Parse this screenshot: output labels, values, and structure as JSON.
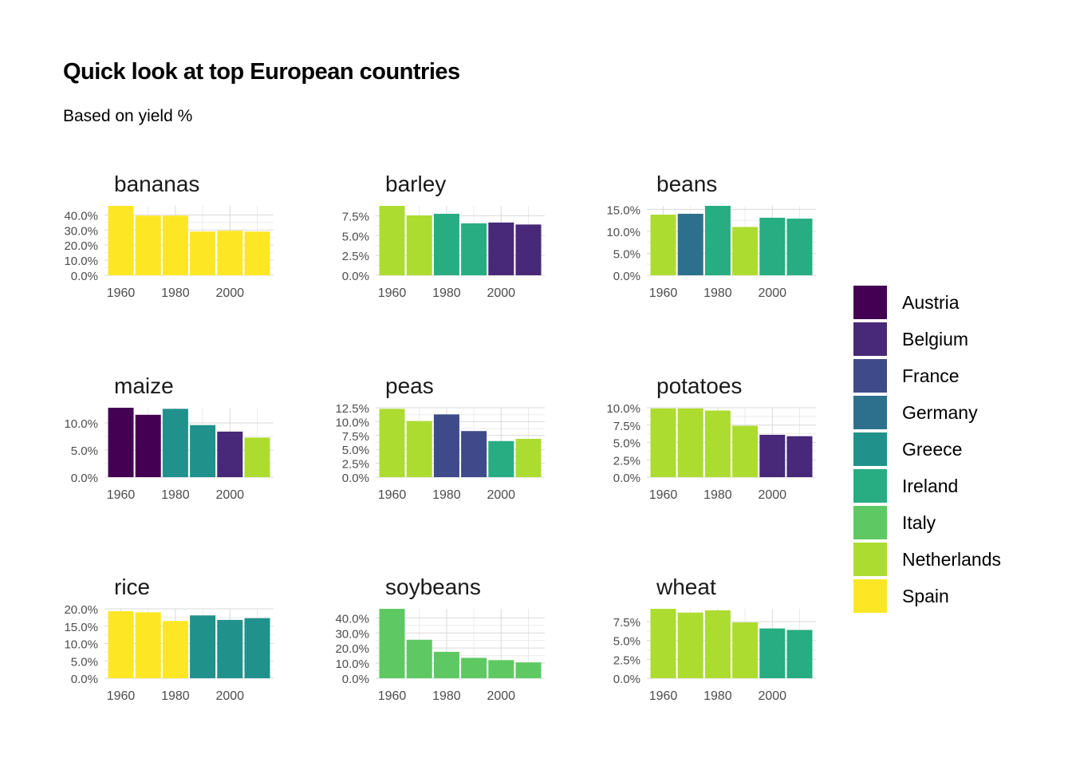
{
  "title": "Quick look at top European countries",
  "subtitle": "Based on yield %",
  "colors": {
    "Austria": "#440154",
    "Belgium": "#482878",
    "France": "#3e4a89",
    "Germany": "#2d708e",
    "Greece": "#21918c",
    "Ireland": "#27ad81",
    "Italy": "#5ec962",
    "Netherlands": "#addc30",
    "Spain": "#fde725"
  },
  "legend": {
    "items": [
      "Austria",
      "Belgium",
      "France",
      "Germany",
      "Greece",
      "Ireland",
      "Italy",
      "Netherlands",
      "Spain"
    ]
  },
  "chart_data": {
    "type": "bar",
    "x": [
      1960,
      1970,
      1980,
      1990,
      2000,
      2010
    ],
    "x_tick_labels": [
      "1960",
      "1980",
      "2000"
    ],
    "grid": true,
    "legend_position": "right",
    "facets": [
      {
        "title": "bananas",
        "ticks": [
          "0.0%",
          "10.0%",
          "20.0%",
          "30.0%",
          "40.0%"
        ],
        "tick_values": [
          0,
          10,
          20,
          30,
          40
        ],
        "ylim": [
          0,
          46
        ],
        "values": [
          46,
          39.5,
          39.5,
          29,
          29.5,
          29
        ],
        "countries": [
          "Spain",
          "Spain",
          "Spain",
          "Spain",
          "Spain",
          "Spain"
        ]
      },
      {
        "title": "barley",
        "ticks": [
          "0.0%",
          "2.5%",
          "5.0%",
          "7.5%"
        ],
        "tick_values": [
          0,
          2.5,
          5,
          7.5
        ],
        "ylim": [
          0,
          8.75
        ],
        "values": [
          8.75,
          7.55,
          7.75,
          6.55,
          6.65,
          6.4
        ],
        "countries": [
          "Netherlands",
          "Netherlands",
          "Ireland",
          "Ireland",
          "Belgium",
          "Belgium"
        ]
      },
      {
        "title": "beans",
        "ticks": [
          "0.0%",
          "5.0%",
          "10.0%",
          "15.0%"
        ],
        "tick_values": [
          0,
          5,
          10,
          15
        ],
        "ylim": [
          0,
          15.8
        ],
        "values": [
          13.8,
          14,
          15.8,
          11,
          13.1,
          12.9
        ],
        "countries": [
          "Netherlands",
          "Germany",
          "Ireland",
          "Netherlands",
          "Ireland",
          "Ireland"
        ]
      },
      {
        "title": "maize",
        "ticks": [
          "0.0%",
          "5.0%",
          "10.0%"
        ],
        "tick_values": [
          0,
          5,
          10
        ],
        "ylim": [
          0,
          12.8
        ],
        "values": [
          12.8,
          11.5,
          12.6,
          9.6,
          8.4,
          7.3
        ],
        "countries": [
          "Austria",
          "Austria",
          "Greece",
          "Greece",
          "Belgium",
          "Netherlands"
        ]
      },
      {
        "title": "peas",
        "ticks": [
          "0.0%",
          "2.5%",
          "5.0%",
          "7.5%",
          "10.0%",
          "12.5%"
        ],
        "tick_values": [
          0,
          2.5,
          5,
          7.5,
          10,
          12.5
        ],
        "ylim": [
          0,
          12.5
        ],
        "values": [
          12.3,
          10.1,
          11.3,
          8.3,
          6.5,
          6.9
        ],
        "countries": [
          "Netherlands",
          "Netherlands",
          "France",
          "France",
          "Ireland",
          "Netherlands"
        ]
      },
      {
        "title": "potatoes",
        "ticks": [
          "0.0%",
          "2.5%",
          "5.0%",
          "7.5%",
          "10.0%"
        ],
        "tick_values": [
          0,
          2.5,
          5,
          7.5,
          10
        ],
        "ylim": [
          0,
          10
        ],
        "values": [
          9.9,
          9.9,
          9.6,
          7.4,
          6.1,
          5.9
        ],
        "countries": [
          "Netherlands",
          "Netherlands",
          "Netherlands",
          "Netherlands",
          "Belgium",
          "Belgium"
        ]
      },
      {
        "title": "rice",
        "ticks": [
          "0.0%",
          "5.0%",
          "10.0%",
          "15.0%",
          "20.0%"
        ],
        "tick_values": [
          0,
          5,
          10,
          15,
          20
        ],
        "ylim": [
          0,
          20
        ],
        "values": [
          19.3,
          19,
          16.5,
          18.1,
          16.8,
          17.3
        ],
        "countries": [
          "Spain",
          "Spain",
          "Spain",
          "Greece",
          "Greece",
          "Greece"
        ]
      },
      {
        "title": "soybeans",
        "ticks": [
          "0.0%",
          "10.0%",
          "20.0%",
          "30.0%",
          "40.0%"
        ],
        "tick_values": [
          0,
          10,
          20,
          30,
          40
        ],
        "ylim": [
          0,
          46
        ],
        "values": [
          46,
          25.5,
          17.5,
          13.5,
          12,
          10.5
        ],
        "countries": [
          "Italy",
          "Italy",
          "Italy",
          "Italy",
          "Italy",
          "Italy"
        ]
      },
      {
        "title": "wheat",
        "ticks": [
          "0.0%",
          "2.5%",
          "5.0%",
          "7.5%"
        ],
        "tick_values": [
          0,
          2.5,
          5,
          7.5
        ],
        "ylim": [
          0,
          9.2
        ],
        "values": [
          9.2,
          8.7,
          9,
          7.4,
          6.6,
          6.4
        ],
        "countries": [
          "Netherlands",
          "Netherlands",
          "Netherlands",
          "Netherlands",
          "Ireland",
          "Ireland"
        ]
      }
    ]
  }
}
